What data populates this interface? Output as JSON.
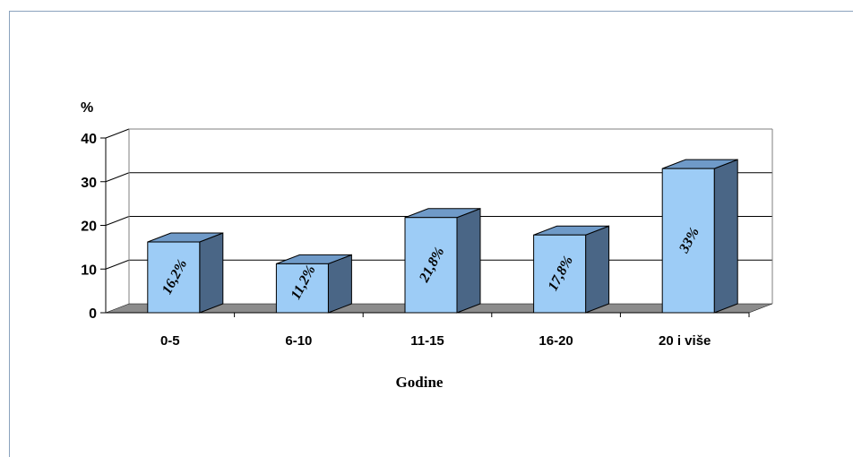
{
  "chart_data": {
    "type": "bar",
    "categories": [
      "0-5",
      "6-10",
      "11-15",
      "16-20",
      "20 i više"
    ],
    "values": [
      16.2,
      11.2,
      21.8,
      17.8,
      33
    ],
    "data_labels": [
      "16,2%",
      "11,2%",
      "21,8%",
      "17,8%",
      "33%"
    ],
    "ylabel": "%",
    "xlabel": "Godine",
    "ylim": [
      0,
      40
    ],
    "yticks": [
      0,
      10,
      20,
      30,
      40
    ],
    "grid": true,
    "style": "3d-column",
    "colors": {
      "bar_front": "#9dccf6",
      "bar_top": "#6f9ac8",
      "bar_side": "#4a6686",
      "floor": "#8c8c8c"
    }
  }
}
